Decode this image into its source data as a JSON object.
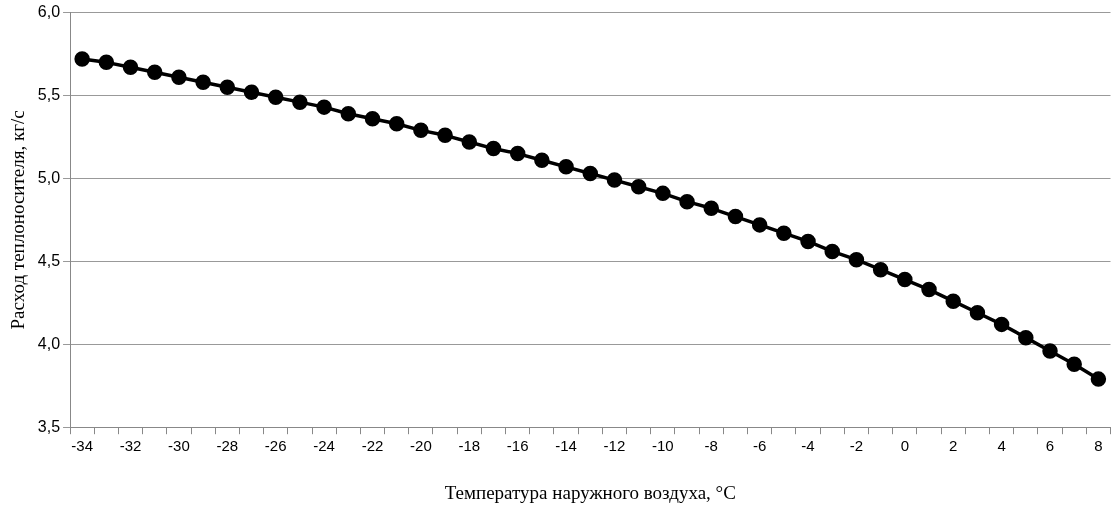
{
  "chart_data": {
    "type": "line",
    "xlabel": "Температура наружного воздуха, °C",
    "ylabel": "Расход теплоносителя, кг/с",
    "categories": [
      "-34",
      null,
      "-32",
      null,
      "-30",
      null,
      "-28",
      null,
      "-26",
      null,
      "-24",
      null,
      "-22",
      null,
      "-20",
      null,
      "-18",
      null,
      "-16",
      null,
      "-14",
      null,
      "-12",
      null,
      "-10",
      null,
      "-8",
      null,
      "-6",
      null,
      "-4",
      null,
      "-2",
      null,
      "0",
      null,
      "2",
      null,
      "4",
      null,
      "6",
      null,
      "8"
    ],
    "series": [
      {
        "color": "#000000",
        "values": [
          5.72,
          5.7,
          5.67,
          5.64,
          5.61,
          5.58,
          5.55,
          5.52,
          5.49,
          5.46,
          5.43,
          5.39,
          5.36,
          5.33,
          5.29,
          5.26,
          5.22,
          5.18,
          5.15,
          5.11,
          5.07,
          5.03,
          4.99,
          4.95,
          4.91,
          4.86,
          4.82,
          4.77,
          4.72,
          4.67,
          4.62,
          4.56,
          4.51,
          4.45,
          4.39,
          4.33,
          4.26,
          4.19,
          4.12,
          4.04,
          3.96,
          3.88,
          3.79
        ]
      }
    ],
    "ylim": [
      3.5,
      6.0
    ],
    "yticks": [
      {
        "value": 3.5,
        "label": "3,5"
      },
      {
        "value": 4.0,
        "label": "4,0"
      },
      {
        "value": 4.5,
        "label": "4,5"
      },
      {
        "value": 5.0,
        "label": "5,0"
      },
      {
        "value": 5.5,
        "label": "5,5"
      },
      {
        "value": 6.0,
        "label": "6,0"
      }
    ],
    "grid": "y",
    "marker": "circle",
    "line_style": "solid",
    "legend": false
  }
}
